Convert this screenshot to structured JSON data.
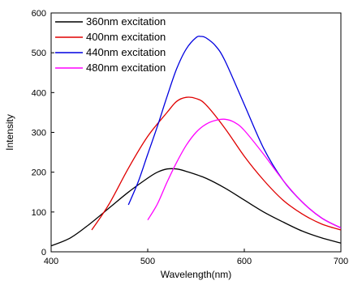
{
  "chart_data": {
    "type": "line",
    "title": "",
    "xlabel": "Wavelength(nm)",
    "ylabel": "Intensity",
    "xlim": [
      400,
      700
    ],
    "ylim": [
      0,
      600
    ],
    "xticks": [
      400,
      500,
      600,
      700
    ],
    "yticks": [
      0,
      100,
      200,
      300,
      400,
      500,
      600
    ],
    "grid": false,
    "legend_position": "top-left",
    "series": [
      {
        "name": "360nm excitation",
        "color": "#000000",
        "x": [
          400,
          420,
          440,
          460,
          480,
          500,
          510,
          520,
          530,
          540,
          560,
          580,
          600,
          620,
          640,
          660,
          680,
          700
        ],
        "y": [
          15,
          35,
          70,
          110,
          150,
          185,
          200,
          208,
          208,
          202,
          185,
          160,
          130,
          100,
          75,
          52,
          35,
          22
        ]
      },
      {
        "name": "400nm excitation",
        "color": "#e00000",
        "x": [
          442,
          460,
          480,
          500,
          520,
          530,
          540,
          550,
          560,
          580,
          600,
          620,
          640,
          660,
          680,
          700
        ],
        "y": [
          55,
          120,
          210,
          290,
          350,
          378,
          388,
          385,
          370,
          310,
          240,
          180,
          130,
          95,
          70,
          55
        ]
      },
      {
        "name": "440nm excitation",
        "color": "#0000e0",
        "x": [
          480,
          490,
          500,
          510,
          520,
          530,
          540,
          550,
          555,
          560,
          570,
          580,
          600,
          620,
          640,
          660,
          680,
          700
        ],
        "y": [
          118,
          175,
          245,
          315,
          390,
          460,
          510,
          538,
          541,
          538,
          518,
          480,
          370,
          260,
          180,
          125,
          85,
          60
        ]
      },
      {
        "name": "480nm excitation",
        "color": "#ff00ff",
        "x": [
          500,
          510,
          520,
          530,
          540,
          550,
          560,
          570,
          580,
          590,
          600,
          620,
          640,
          660,
          680,
          700
        ],
        "y": [
          80,
          120,
          175,
          225,
          268,
          300,
          320,
          330,
          333,
          325,
          305,
          245,
          180,
          125,
          85,
          60
        ]
      }
    ]
  }
}
